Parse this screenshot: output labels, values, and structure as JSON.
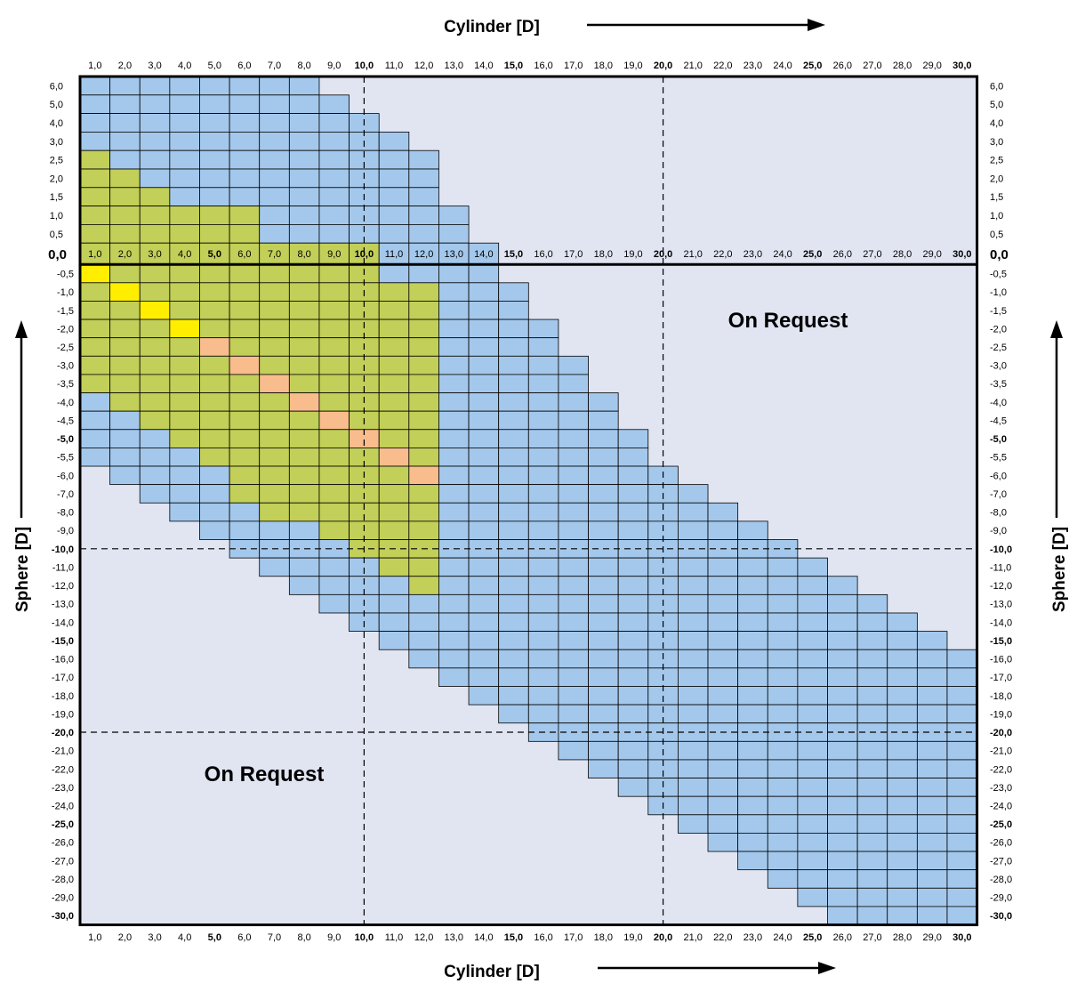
{
  "colors": {
    "background": "#e1e5f2",
    "available": "#a4c8ec",
    "stock": "#c2cf58",
    "highlight_yellow": "#ffee00",
    "highlight_orange": "#f9bc8d",
    "grid_line": "#000000"
  },
  "chart_data": {
    "type": "heatmap",
    "xlabel": "Cylinder [D]",
    "ylabel": "Sphere [D]",
    "x_ticks": [
      "1,0",
      "2,0",
      "3,0",
      "4,0",
      "5,0",
      "6,0",
      "7,0",
      "8,0",
      "9,0",
      "10,0",
      "11,0",
      "12,0",
      "13,0",
      "14,0",
      "15,0",
      "16,0",
      "17,0",
      "18,0",
      "19,0",
      "20,0",
      "21,0",
      "22,0",
      "23,0",
      "24,0",
      "25,0",
      "26,0",
      "27,0",
      "28,0",
      "29,0",
      "30,0"
    ],
    "x_ticks_bold": [
      "5,0",
      "10,0",
      "15,0",
      "20,0",
      "25,0",
      "30,0"
    ],
    "x_ticks_top_bold": [
      "10,0",
      "15,0",
      "20,0",
      "25,0",
      "30,0"
    ],
    "zero_row_bold": [
      "5,0",
      "10,0",
      "15,0",
      "20,0",
      "25,0",
      "30,0"
    ],
    "zero_label": "0,0",
    "y_ticks_positive": [
      "6,0",
      "5,0",
      "4,0",
      "3,0",
      "2,5",
      "2,0",
      "1,5",
      "1,0",
      "0,5"
    ],
    "y_ticks_negative": [
      "-0,5",
      "-1,0",
      "-1,5",
      "-2,0",
      "-2,5",
      "-3,0",
      "-3,5",
      "-4,0",
      "-4,5",
      "-5,0",
      "-5,5",
      "-6,0",
      "-7,0",
      "-8,0",
      "-9,0",
      "-10,0",
      "-11,0",
      "-12,0",
      "-13,0",
      "-14,0",
      "-15,0",
      "-16,0",
      "-17,0",
      "-18,0",
      "-19,0",
      "-20,0",
      "-21,0",
      "-22,0",
      "-23,0",
      "-24,0",
      "-25,0",
      "-26,0",
      "-27,0",
      "-28,0",
      "-29,0",
      "-30,0"
    ],
    "y_ticks_bold": [
      "-5,0",
      "-10,0",
      "-15,0",
      "-20,0",
      "-25,0",
      "-30,0"
    ],
    "reference_lines": {
      "cylinder": [
        10,
        20
      ],
      "sphere": [
        -10,
        -20
      ]
    },
    "regions": [
      {
        "label": "On Request",
        "location": "upper-right"
      },
      {
        "label": "On Request",
        "location": "lower-left"
      }
    ],
    "positive_rows": [
      {
        "sphere": 6.0,
        "available_max_cyl": 8
      },
      {
        "sphere": 5.0,
        "available_max_cyl": 9
      },
      {
        "sphere": 4.0,
        "available_max_cyl": 10
      },
      {
        "sphere": 3.0,
        "available_max_cyl": 11
      },
      {
        "sphere": 2.5,
        "available_max_cyl": 12,
        "stock_max_cyl": 1
      },
      {
        "sphere": 2.0,
        "available_max_cyl": 12,
        "stock_max_cyl": 2
      },
      {
        "sphere": 1.5,
        "available_max_cyl": 12,
        "stock_max_cyl": 3
      },
      {
        "sphere": 1.0,
        "available_max_cyl": 13,
        "stock_max_cyl": 6
      },
      {
        "sphere": 0.5,
        "available_max_cyl": 13,
        "stock_max_cyl": 6
      },
      {
        "sphere": 0.0,
        "available_max_cyl": 14,
        "stock_max_cyl": 10
      }
    ],
    "negative_rows": [
      {
        "sphere": -0.5,
        "available": [
          1,
          14
        ],
        "stock": [
          1,
          10
        ],
        "highlight": 1,
        "highlight_color": "yellow"
      },
      {
        "sphere": -1.0,
        "available": [
          1,
          15
        ],
        "stock": [
          1,
          12
        ],
        "highlight": 2,
        "highlight_color": "yellow"
      },
      {
        "sphere": -1.5,
        "available": [
          1,
          15
        ],
        "stock": [
          1,
          12
        ],
        "highlight": 3,
        "highlight_color": "yellow"
      },
      {
        "sphere": -2.0,
        "available": [
          1,
          16
        ],
        "stock": [
          1,
          12
        ],
        "highlight": 4,
        "highlight_color": "yellow"
      },
      {
        "sphere": -2.5,
        "available": [
          1,
          16
        ],
        "stock": [
          1,
          12
        ],
        "highlight": 5,
        "highlight_color": "orange"
      },
      {
        "sphere": -3.0,
        "available": [
          1,
          17
        ],
        "stock": [
          1,
          12
        ],
        "highlight": 6,
        "highlight_color": "orange"
      },
      {
        "sphere": -3.5,
        "available": [
          1,
          17
        ],
        "stock": [
          1,
          12
        ],
        "highlight": 7,
        "highlight_color": "orange"
      },
      {
        "sphere": -4.0,
        "available": [
          1,
          18
        ],
        "stock": [
          2,
          12
        ],
        "highlight": 8,
        "highlight_color": "orange"
      },
      {
        "sphere": -4.5,
        "available": [
          1,
          18
        ],
        "stock": [
          3,
          12
        ],
        "highlight": 9,
        "highlight_color": "orange"
      },
      {
        "sphere": -5.0,
        "available": [
          1,
          19
        ],
        "stock": [
          4,
          12
        ],
        "highlight": 10,
        "highlight_color": "orange"
      },
      {
        "sphere": -5.5,
        "available": [
          1,
          19
        ],
        "stock": [
          5,
          12
        ],
        "highlight": 11,
        "highlight_color": "orange"
      },
      {
        "sphere": -6.0,
        "available": [
          2,
          20
        ],
        "stock": [
          6,
          12
        ],
        "highlight": 12,
        "highlight_color": "orange"
      },
      {
        "sphere": -7.0,
        "available": [
          3,
          21
        ],
        "stock": [
          6,
          12
        ]
      },
      {
        "sphere": -8.0,
        "available": [
          4,
          22
        ],
        "stock": [
          7,
          12
        ]
      },
      {
        "sphere": -9.0,
        "available": [
          5,
          23
        ],
        "stock": [
          9,
          12
        ]
      },
      {
        "sphere": -10.0,
        "available": [
          6,
          24
        ],
        "stock": [
          10,
          12
        ]
      },
      {
        "sphere": -11.0,
        "available": [
          7,
          25
        ],
        "stock": [
          11,
          12
        ]
      },
      {
        "sphere": -12.0,
        "available": [
          8,
          26
        ],
        "stock": [
          12,
          12
        ]
      },
      {
        "sphere": -13.0,
        "available": [
          9,
          27
        ]
      },
      {
        "sphere": -14.0,
        "available": [
          10,
          28
        ]
      },
      {
        "sphere": -15.0,
        "available": [
          11,
          29
        ]
      },
      {
        "sphere": -16.0,
        "available": [
          12,
          30
        ]
      },
      {
        "sphere": -17.0,
        "available": [
          13,
          30
        ]
      },
      {
        "sphere": -18.0,
        "available": [
          14,
          30
        ]
      },
      {
        "sphere": -19.0,
        "available": [
          15,
          30
        ]
      },
      {
        "sphere": -20.0,
        "available": [
          16,
          30
        ]
      },
      {
        "sphere": -21.0,
        "available": [
          17,
          30
        ]
      },
      {
        "sphere": -22.0,
        "available": [
          18,
          30
        ]
      },
      {
        "sphere": -23.0,
        "available": [
          19,
          30
        ]
      },
      {
        "sphere": -24.0,
        "available": [
          20,
          30
        ]
      },
      {
        "sphere": -25.0,
        "available": [
          21,
          30
        ]
      },
      {
        "sphere": -26.0,
        "available": [
          22,
          30
        ]
      },
      {
        "sphere": -27.0,
        "available": [
          23,
          30
        ]
      },
      {
        "sphere": -28.0,
        "available": [
          24,
          30
        ]
      },
      {
        "sphere": -29.0,
        "available": [
          25,
          30
        ]
      },
      {
        "sphere": -30.0,
        "available": [
          26,
          30
        ]
      }
    ]
  }
}
